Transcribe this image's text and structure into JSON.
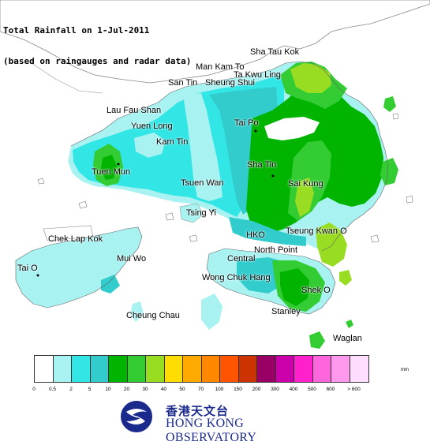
{
  "title": {
    "line1": "Total Rainfall on 1-Jul-2011",
    "line2": "(based on raingauges and radar data)"
  },
  "places": [
    {
      "key": "sha-tau-kok",
      "label": "Sha Tau Kok"
    },
    {
      "key": "man-kam-to",
      "label": "Man Kam To"
    },
    {
      "key": "ta-kwu-ling",
      "label": "Ta Kwu Ling"
    },
    {
      "key": "san-tin",
      "label": "San Tin"
    },
    {
      "key": "sheung-shui",
      "label": "Sheung Shui"
    },
    {
      "key": "lau-fau-shan",
      "label": "Lau Fau Shan"
    },
    {
      "key": "yuen-long",
      "label": "Yuen Long"
    },
    {
      "key": "tai-po",
      "label": "Tai Po"
    },
    {
      "key": "kam-tin",
      "label": "Kam Tin"
    },
    {
      "key": "tuen-mun",
      "label": "Tuen Mun"
    },
    {
      "key": "sha-tin",
      "label": "Sha Tin"
    },
    {
      "key": "tsuen-wan",
      "label": "Tsuen Wan"
    },
    {
      "key": "sai-kung",
      "label": "Sai Kung"
    },
    {
      "key": "tsing-yi",
      "label": "Tsing Yi"
    },
    {
      "key": "chek-lap-kok",
      "label": "Chek Lap Kok"
    },
    {
      "key": "hko",
      "label": "HKO"
    },
    {
      "key": "tseung-kwan-o",
      "label": "Tseung Kwan O"
    },
    {
      "key": "mui-wo",
      "label": "Mui Wo"
    },
    {
      "key": "north-point",
      "label": "North Point"
    },
    {
      "key": "central",
      "label": "Central"
    },
    {
      "key": "tai-o",
      "label": "Tai O"
    },
    {
      "key": "wong-chuk-hang",
      "label": "Wong Chuk Hang"
    },
    {
      "key": "shek-o",
      "label": "Shek O"
    },
    {
      "key": "cheung-chau",
      "label": "Cheung Chau"
    },
    {
      "key": "stanley",
      "label": "Stanley"
    },
    {
      "key": "waglan",
      "label": "Waglan"
    }
  ],
  "legend": {
    "unit": "mm",
    "colors": [
      "#ffffff",
      "#a9f2f2",
      "#33e6e6",
      "#33cccc",
      "#00b400",
      "#33cc33",
      "#99dd22",
      "#ffdd00",
      "#ffaa00",
      "#ff8800",
      "#ff5500",
      "#cc3300",
      "#990066",
      "#cc00aa",
      "#ff22cc",
      "#ff66dd",
      "#ff99ee",
      "#ffddff"
    ],
    "ticks": [
      "0",
      "0.5",
      "2",
      "5",
      "10",
      "20",
      "30",
      "40",
      "50",
      "70",
      "100",
      "150",
      "200",
      "300",
      "400",
      "500",
      "600",
      "> 600"
    ]
  },
  "logo": {
    "chinese": "香港天文台",
    "english": "HONG KONG OBSERVATORY"
  }
}
